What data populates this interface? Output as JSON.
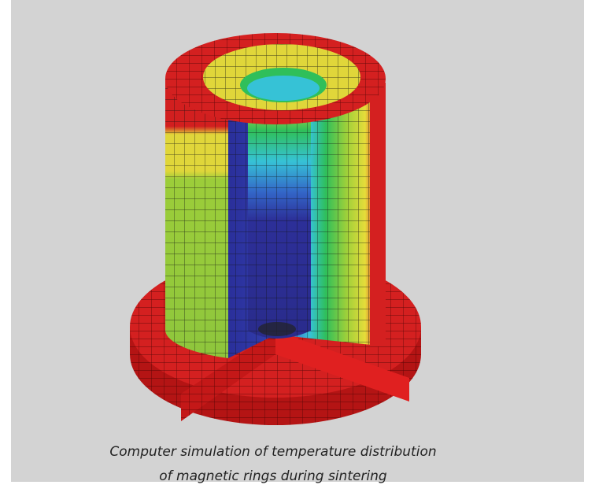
{
  "caption": {
    "lines": [
      "Computer simulation of temperature distribution",
      "of magnetic rings during sintering"
    ]
  }
}
